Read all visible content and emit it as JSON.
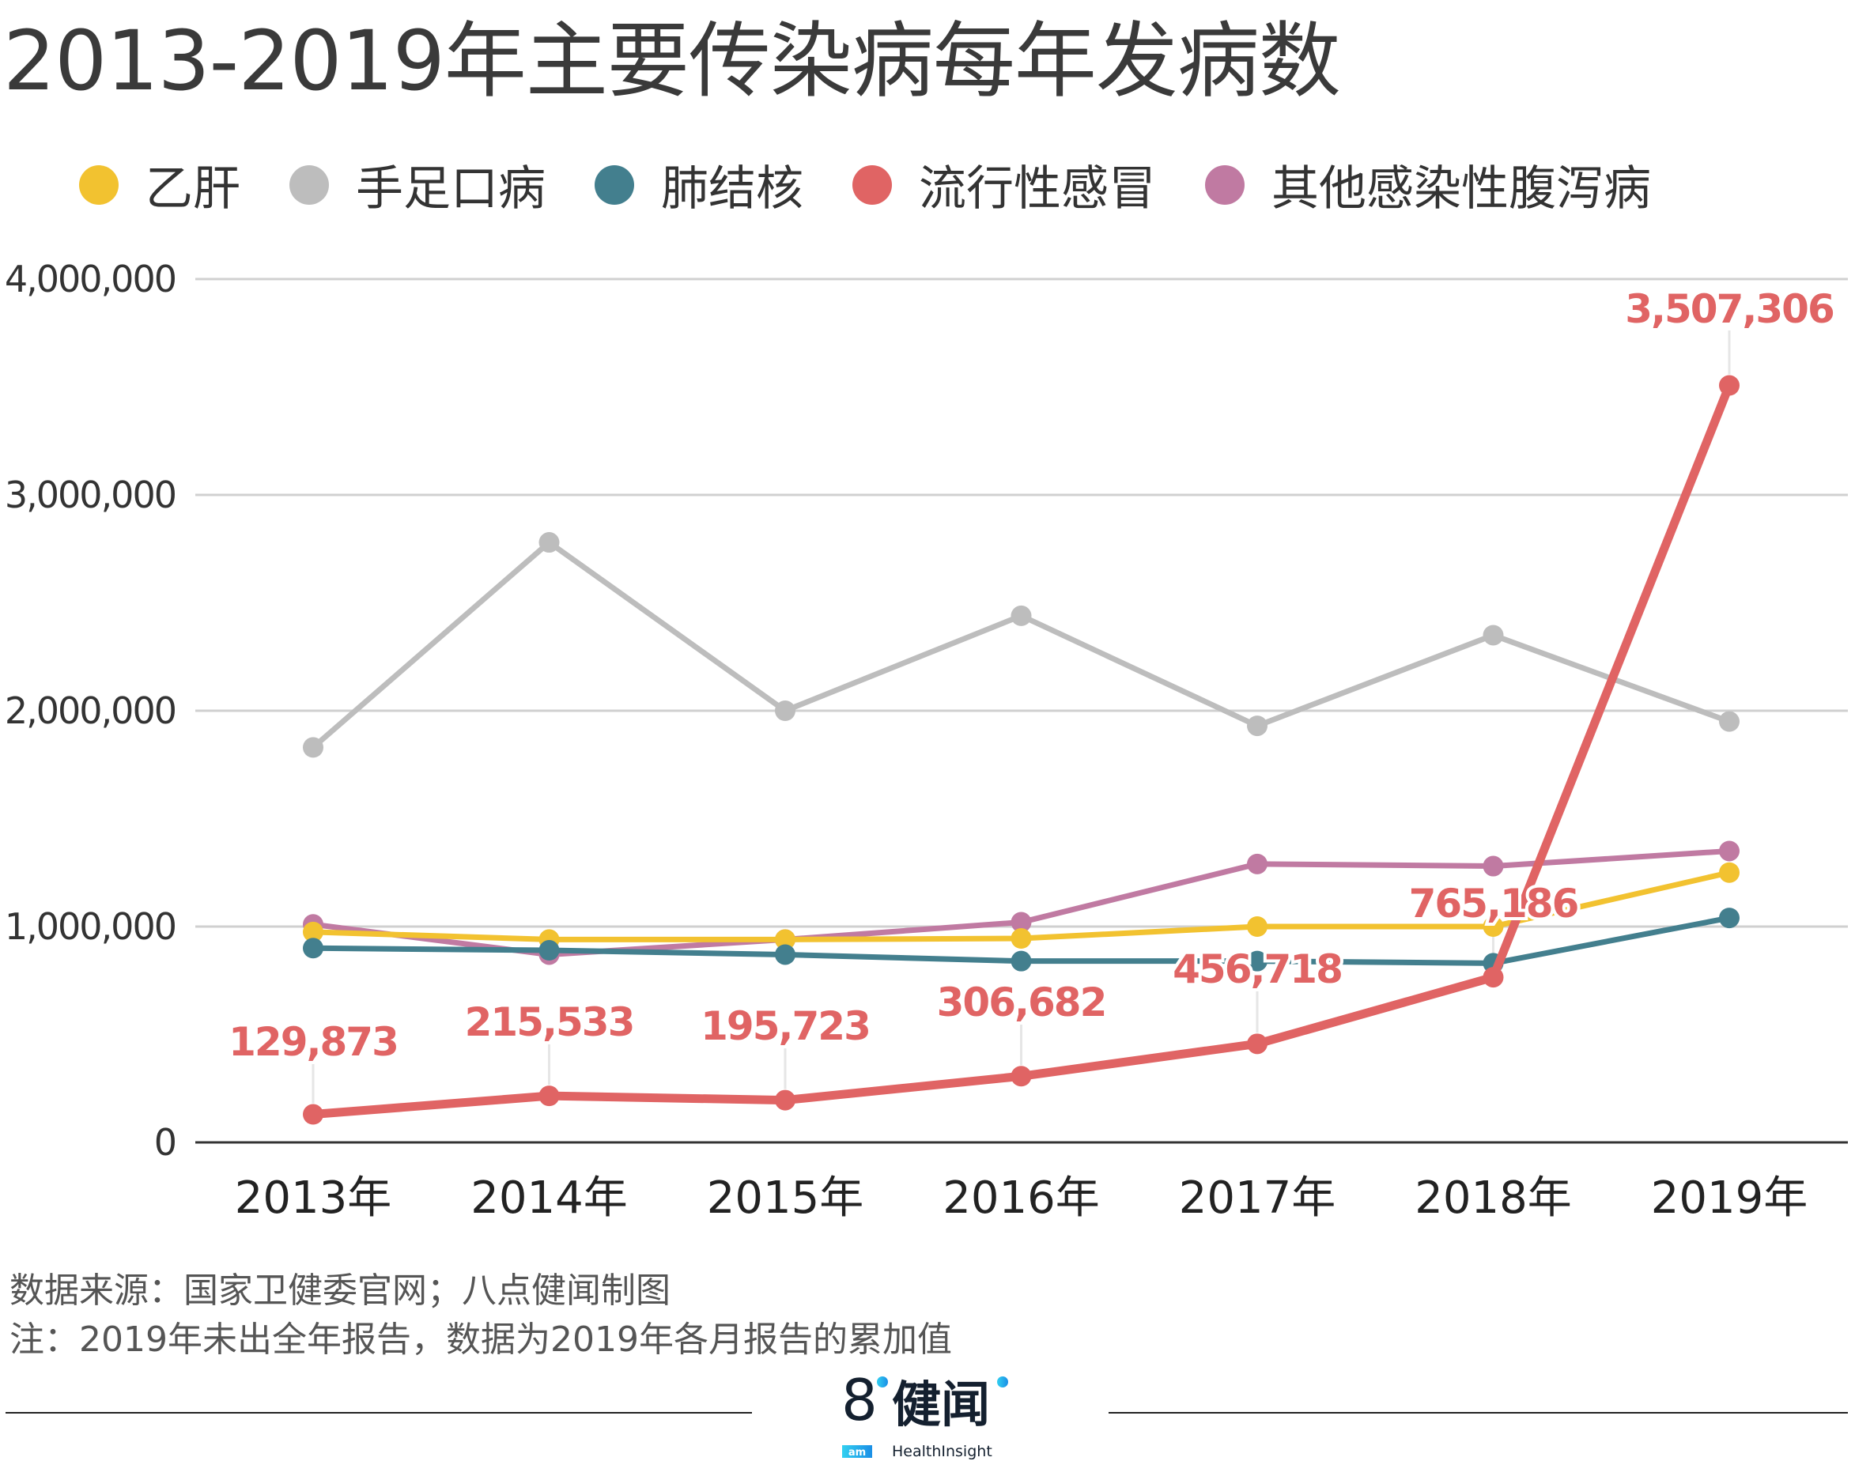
{
  "chart_data": {
    "type": "line",
    "title": "2013-2019年主要传染病每年发病数",
    "categories": [
      "2013年",
      "2014年",
      "2015年",
      "2016年",
      "2017年",
      "2018年",
      "2019年"
    ],
    "xlabel": "",
    "ylabel": "",
    "ylim": [
      0,
      4000000
    ],
    "yticks": [
      0,
      1000000,
      2000000,
      3000000,
      4000000
    ],
    "ytick_labels": [
      "0",
      "1,000,000",
      "2,000,000",
      "3,000,000",
      "4,000,000"
    ],
    "grid": true,
    "legend_position": "top",
    "series": [
      {
        "name": "乙肝",
        "color": "#F2C230",
        "values": [
          975000,
          940000,
          940000,
          945000,
          1000000,
          1000000,
          1250000
        ]
      },
      {
        "name": "手足口病",
        "color": "#BDBDBD",
        "values": [
          1830000,
          2780000,
          2000000,
          2440000,
          1930000,
          2350000,
          1950000
        ]
      },
      {
        "name": "肺结核",
        "color": "#437F8E",
        "values": [
          900000,
          890000,
          870000,
          840000,
          840000,
          830000,
          1040000
        ]
      },
      {
        "name": "流行性感冒",
        "color": "#E06464",
        "values": [
          129873,
          215533,
          195723,
          306682,
          456718,
          765186,
          3507306
        ],
        "data_labels": [
          "129,873",
          "215,533",
          "195,723",
          "306,682",
          "456,718",
          "765,186",
          "3,507,306"
        ]
      },
      {
        "name": "其他感染性腹泻病",
        "color": "#C07AA2",
        "values": [
          1010000,
          870000,
          940000,
          1020000,
          1290000,
          1280000,
          1350000
        ]
      }
    ]
  },
  "notes": {
    "source": "数据来源：国家卫健委官网；八点健闻制图",
    "note": "注：2019年未出全年报告，数据为2019年各月报告的累加值"
  },
  "logo": {
    "mark": "8",
    "name": "健闻",
    "sub": "am",
    "tagline": "HealthInsight"
  }
}
